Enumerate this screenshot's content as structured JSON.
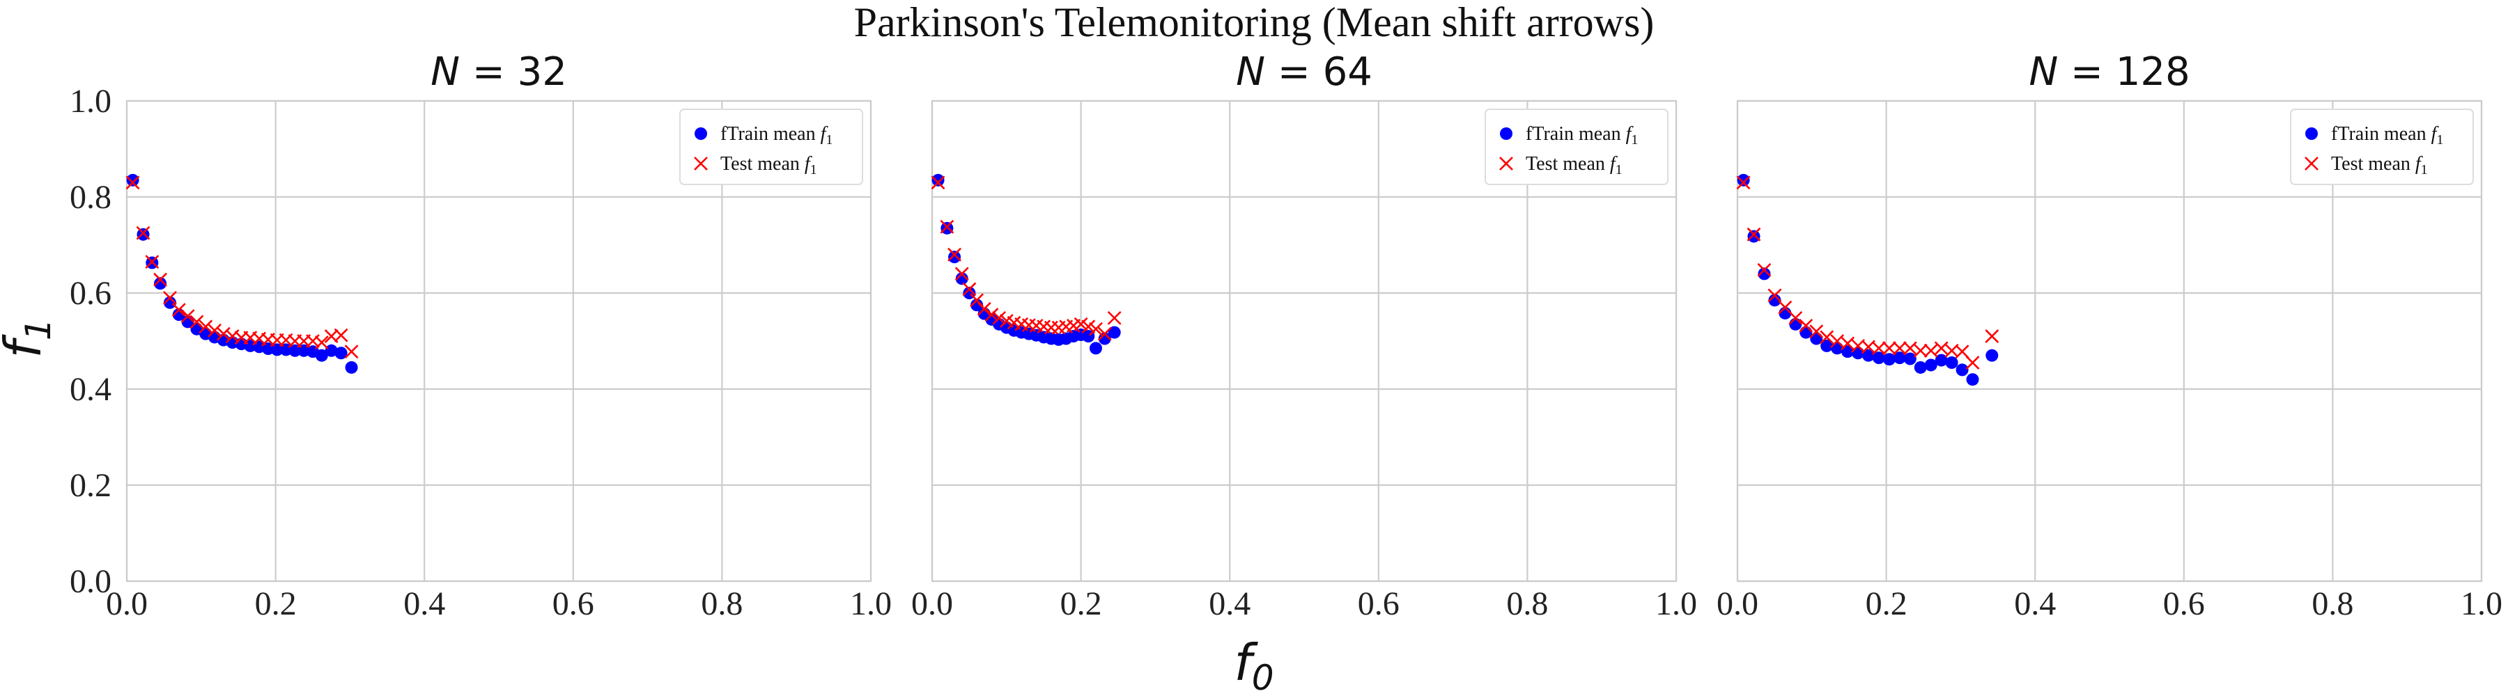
{
  "figure": {
    "title": "Parkinson's Telemonitoring (Mean shift arrows)",
    "xlabel": "f",
    "xlabel_sub": "0",
    "ylabel": "f",
    "ylabel_sub": "1"
  },
  "colors": {
    "train": "#0000ff",
    "test": "#ff0000",
    "grid": "#cccccc"
  },
  "chart_data": [
    {
      "type": "scatter",
      "title_var": "N",
      "title_value": "32",
      "xlim": [
        0,
        1
      ],
      "ylim": [
        0,
        1
      ],
      "xticks": [
        "0.0",
        "0.2",
        "0.4",
        "0.6",
        "0.8",
        "1.0"
      ],
      "yticks": [
        "0.0",
        "0.2",
        "0.4",
        "0.6",
        "0.8",
        "1.0"
      ],
      "grid": true,
      "legend": {
        "placement": "top-right",
        "entries": [
          "fTrain mean f1",
          "Test mean f1"
        ],
        "train_text": "fTrain mean ",
        "test_text": "Test mean ",
        "var": "f",
        "sub": "1"
      },
      "series": [
        {
          "name": "fTrain mean f1",
          "marker": "circle",
          "x": [
            0.008,
            0.022,
            0.034,
            0.045,
            0.058,
            0.07,
            0.082,
            0.094,
            0.106,
            0.118,
            0.13,
            0.142,
            0.154,
            0.166,
            0.178,
            0.19,
            0.202,
            0.214,
            0.226,
            0.238,
            0.25,
            0.262,
            0.275,
            0.288,
            0.302
          ],
          "y": [
            0.835,
            0.722,
            0.663,
            0.62,
            0.58,
            0.555,
            0.54,
            0.525,
            0.515,
            0.508,
            0.502,
            0.497,
            0.494,
            0.49,
            0.488,
            0.484,
            0.482,
            0.482,
            0.48,
            0.48,
            0.478,
            0.47,
            0.48,
            0.475,
            0.445
          ]
        },
        {
          "name": "Test mean f1",
          "marker": "x",
          "x": [
            0.008,
            0.022,
            0.034,
            0.045,
            0.058,
            0.07,
            0.082,
            0.094,
            0.106,
            0.118,
            0.13,
            0.142,
            0.154,
            0.166,
            0.178,
            0.19,
            0.202,
            0.214,
            0.226,
            0.238,
            0.25,
            0.262,
            0.275,
            0.288,
            0.302
          ],
          "y": [
            0.83,
            0.725,
            0.665,
            0.628,
            0.59,
            0.565,
            0.552,
            0.54,
            0.53,
            0.522,
            0.515,
            0.51,
            0.507,
            0.507,
            0.505,
            0.503,
            0.502,
            0.502,
            0.5,
            0.5,
            0.5,
            0.497,
            0.51,
            0.512,
            0.478
          ]
        }
      ]
    },
    {
      "type": "scatter",
      "title_var": "N",
      "title_value": "64",
      "xlim": [
        0,
        1
      ],
      "ylim": [
        0,
        1
      ],
      "xticks": [
        "0.0",
        "0.2",
        "0.4",
        "0.6",
        "0.8",
        "1.0"
      ],
      "yticks": [],
      "grid": true,
      "legend": {
        "placement": "top-right",
        "entries": [
          "fTrain mean f1",
          "Test mean f1"
        ],
        "train_text": "fTrain mean ",
        "test_text": "Test mean ",
        "var": "f",
        "sub": "1"
      },
      "series": [
        {
          "name": "fTrain mean f1",
          "marker": "circle",
          "x": [
            0.008,
            0.02,
            0.03,
            0.04,
            0.05,
            0.06,
            0.07,
            0.08,
            0.09,
            0.1,
            0.11,
            0.12,
            0.13,
            0.14,
            0.15,
            0.16,
            0.17,
            0.18,
            0.19,
            0.2,
            0.21,
            0.22,
            0.232,
            0.245
          ],
          "y": [
            0.835,
            0.735,
            0.675,
            0.63,
            0.6,
            0.575,
            0.557,
            0.545,
            0.535,
            0.528,
            0.522,
            0.518,
            0.515,
            0.512,
            0.508,
            0.505,
            0.503,
            0.505,
            0.51,
            0.513,
            0.51,
            0.485,
            0.505,
            0.518
          ]
        },
        {
          "name": "Test mean f1",
          "marker": "x",
          "x": [
            0.008,
            0.02,
            0.03,
            0.04,
            0.05,
            0.06,
            0.07,
            0.08,
            0.09,
            0.1,
            0.11,
            0.12,
            0.13,
            0.14,
            0.15,
            0.16,
            0.17,
            0.18,
            0.19,
            0.2,
            0.21,
            0.22,
            0.232,
            0.245
          ],
          "y": [
            0.83,
            0.738,
            0.68,
            0.64,
            0.608,
            0.585,
            0.567,
            0.555,
            0.548,
            0.542,
            0.538,
            0.535,
            0.533,
            0.532,
            0.53,
            0.528,
            0.528,
            0.53,
            0.532,
            0.535,
            0.53,
            0.525,
            0.515,
            0.548
          ]
        }
      ]
    },
    {
      "type": "scatter",
      "title_var": "N",
      "title_value": "128",
      "xlim": [
        0,
        1
      ],
      "ylim": [
        0,
        1
      ],
      "xticks": [
        "0.0",
        "0.2",
        "0.4",
        "0.6",
        "0.8",
        "1.0"
      ],
      "yticks": [],
      "grid": true,
      "legend": {
        "placement": "top-right",
        "entries": [
          "fTrain mean f1",
          "Test mean f1"
        ],
        "train_text": "fTrain mean ",
        "test_text": "Test mean ",
        "var": "f",
        "sub": "1"
      },
      "series": [
        {
          "name": "fTrain mean f1",
          "marker": "circle",
          "x": [
            0.008,
            0.022,
            0.036,
            0.05,
            0.064,
            0.078,
            0.092,
            0.106,
            0.12,
            0.134,
            0.148,
            0.162,
            0.176,
            0.19,
            0.204,
            0.218,
            0.232,
            0.246,
            0.26,
            0.274,
            0.288,
            0.302,
            0.316,
            0.342
          ],
          "y": [
            0.835,
            0.718,
            0.64,
            0.585,
            0.558,
            0.535,
            0.518,
            0.505,
            0.49,
            0.485,
            0.478,
            0.475,
            0.47,
            0.465,
            0.462,
            0.465,
            0.463,
            0.445,
            0.45,
            0.46,
            0.455,
            0.44,
            0.42,
            0.47
          ]
        },
        {
          "name": "Test mean f1",
          "marker": "x",
          "x": [
            0.008,
            0.022,
            0.036,
            0.05,
            0.064,
            0.078,
            0.092,
            0.106,
            0.12,
            0.134,
            0.148,
            0.162,
            0.176,
            0.19,
            0.204,
            0.218,
            0.232,
            0.246,
            0.26,
            0.274,
            0.288,
            0.302,
            0.316,
            0.342
          ],
          "y": [
            0.83,
            0.722,
            0.648,
            0.595,
            0.57,
            0.548,
            0.532,
            0.52,
            0.508,
            0.5,
            0.495,
            0.49,
            0.488,
            0.485,
            0.485,
            0.485,
            0.485,
            0.48,
            0.48,
            0.485,
            0.48,
            0.478,
            0.455,
            0.51
          ]
        }
      ]
    }
  ]
}
